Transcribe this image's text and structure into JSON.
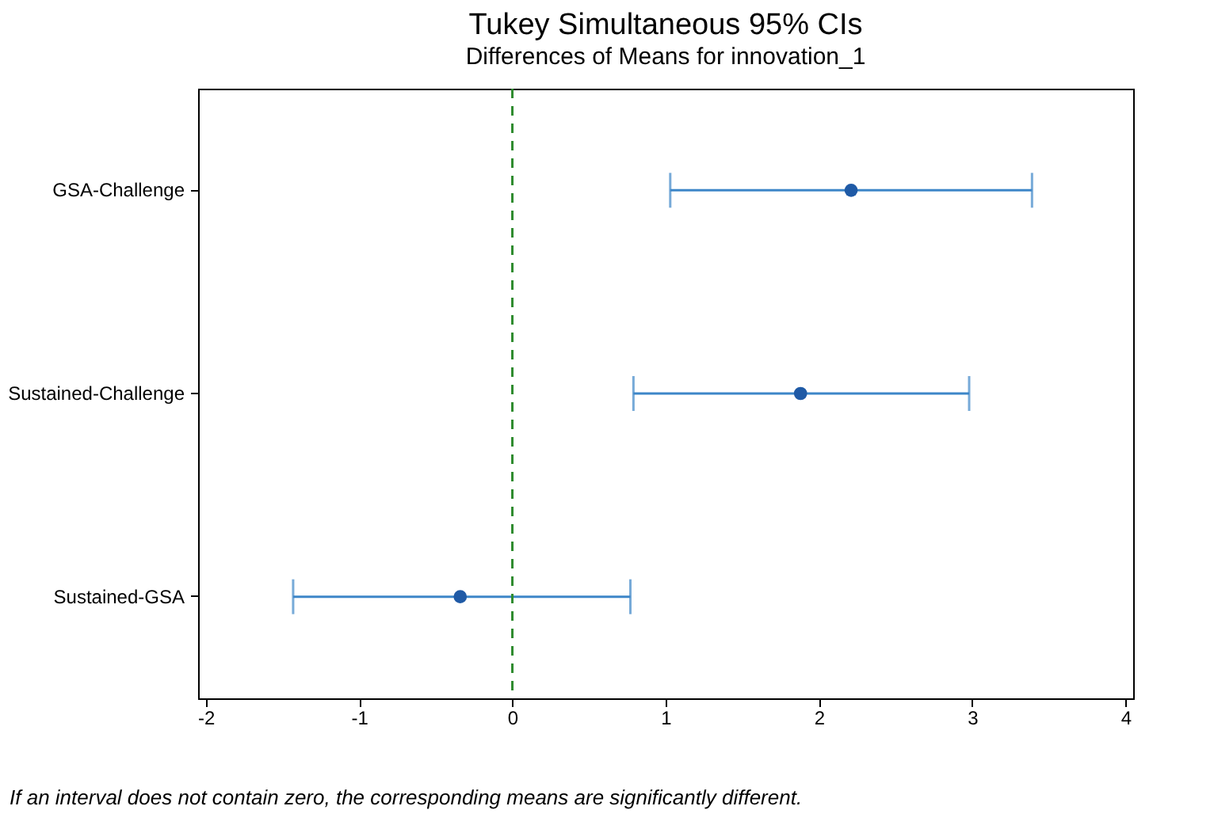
{
  "chart_data": {
    "type": "scatter",
    "title": "Tukey Simultaneous 95% CIs",
    "subtitle": "Differences of Means for innovation_1",
    "orientation": "horizontal",
    "categories": [
      "GSA-Challenge",
      "Sustained-Challenge",
      "Sustained-GSA"
    ],
    "series": [
      {
        "color": "#1f5aa6",
        "values": [
          2.21,
          1.88,
          -0.34
        ],
        "errors": [
          [
            1.03,
            3.39
          ],
          [
            0.79,
            2.98
          ],
          [
            -1.43,
            0.77
          ]
        ]
      }
    ],
    "xlim": [
      -2.05,
      4.05
    ],
    "xticks": [
      -2,
      -1,
      0,
      1,
      2,
      3,
      4
    ],
    "grid": false,
    "marker": "circle",
    "ref_lines": [
      {
        "axis": "x",
        "value": 0,
        "color": "#2e8b2e",
        "line_style": "dashed"
      }
    ],
    "annotations": [
      "If an interval does not contain zero, the corresponding means are significantly different."
    ]
  }
}
